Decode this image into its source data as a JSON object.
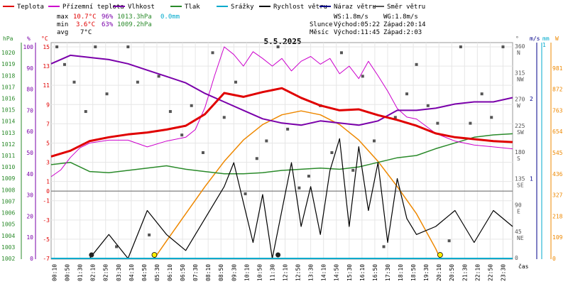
{
  "colors": {
    "temp": "#e00000",
    "apparent": "#cc00cc",
    "humidity": "#7a00aa",
    "pressure": "#2a8a2a",
    "precip": "#00aacc",
    "wind": "#000000",
    "gust": "#000088",
    "direction": "#555555",
    "sun": "#ee8800",
    "moon": "#222222",
    "sunmark": "#ffee00"
  },
  "legend": [
    {
      "key": "temp",
      "label": "Teplota"
    },
    {
      "key": "apparent",
      "label": "Přízemní teplota"
    },
    {
      "key": "humidity",
      "label": "Vlhkost"
    },
    {
      "key": "pressure",
      "label": "Tlak"
    },
    {
      "key": "precip",
      "label": "Srážky"
    },
    {
      "key": "wind",
      "label": "Rychlost větru"
    },
    {
      "key": "gust",
      "label": "Náraz větru"
    },
    {
      "key": "direction",
      "label": "Směr větru"
    }
  ],
  "stats": {
    "max": {
      "label": "max",
      "temp": "10.7°C",
      "hum": "96%",
      "press": "1013.3hPa",
      "precip": "0.0mm"
    },
    "min": {
      "label": "min",
      "temp": "3.6°C",
      "hum": "63%",
      "press": "1009.2hPa"
    },
    "avg": {
      "label": "avg",
      "temp": "7°C"
    }
  },
  "info": {
    "ws": "WS:1.8m/s",
    "wg": "WG:1.8m/s",
    "sun_label": "Slunce",
    "sunrise": "Východ:05:22",
    "sunset": "Západ:20:14",
    "moon_label": "Měsíc",
    "moonrise": "Východ:11:45",
    "moonset": "Západ:2:03"
  },
  "title": "5.5.2025",
  "axes": {
    "hpa_title": "hPa",
    "pct_title": "%",
    "degc_title": "°C",
    "dir_title": "°",
    "ms_title": "m/s",
    "mm_title": "mm",
    "w_title": "W",
    "time_title": "čas",
    "hpa_ticks": [
      "1020",
      "1019",
      "1018",
      "1017",
      "1016",
      "1015",
      "1014",
      "1013",
      "1012",
      "1011",
      "1010",
      "1009",
      "1008",
      "1007",
      "1006",
      "1005",
      "1004",
      "1003",
      "1002"
    ],
    "pct_ticks": [
      "100",
      "90",
      "80",
      "70",
      "60",
      "50",
      "40",
      "30",
      "20",
      "10",
      "0"
    ],
    "degc_ticks": [
      "15",
      "13",
      "11",
      "9",
      "7",
      "5",
      "3",
      "1",
      "0",
      "-1",
      "-3",
      "-5",
      "-7"
    ],
    "dir_ticks": [
      {
        "deg": "360",
        "abbr": "N"
      },
      {
        "deg": "315",
        "abbr": "NW"
      },
      {
        "deg": "270",
        "abbr": "W"
      },
      {
        "deg": "225",
        "abbr": "SW"
      },
      {
        "deg": "180",
        "abbr": "S"
      },
      {
        "deg": "135",
        "abbr": "SE"
      },
      {
        "deg": "90",
        "abbr": "E"
      },
      {
        "deg": "45",
        "abbr": "NE"
      },
      {
        "deg": "0",
        "abbr": ""
      }
    ],
    "ms_ticks": [
      "1",
      "2"
    ],
    "mm_ticks": [
      "1"
    ],
    "w_ticks": [
      "981",
      "872",
      "763",
      "654",
      "545",
      "436",
      "327",
      "218",
      "109",
      "0"
    ],
    "time_ticks": [
      "00:10",
      "00:50",
      "01:30",
      "02:10",
      "02:50",
      "03:30",
      "04:10",
      "04:50",
      "05:30",
      "06:10",
      "06:50",
      "07:30",
      "08:10",
      "08:50",
      "09:30",
      "10:10",
      "10:50",
      "11:30",
      "12:10",
      "12:50",
      "13:30",
      "14:10",
      "14:50",
      "15:30",
      "16:10",
      "16:50",
      "17:30",
      "18:10",
      "18:50",
      "19:30",
      "20:10",
      "20:50",
      "21:30",
      "22:10",
      "22:50",
      "23:30"
    ]
  },
  "chart_data": {
    "type": "line",
    "title": "5.5.2025",
    "x_unit": "hours",
    "xlim": [
      0,
      24
    ],
    "series": [
      {
        "name": "Teplota",
        "axis": "degc",
        "ylim": [
          -7,
          15
        ],
        "x": [
          0,
          1,
          2,
          3,
          4,
          5,
          6,
          7,
          8,
          9,
          10,
          11,
          12,
          13,
          14,
          15,
          16,
          17,
          18,
          19,
          20,
          21,
          22,
          23,
          24
        ],
        "y": [
          3.6,
          4.2,
          5.2,
          5.6,
          5.9,
          6.1,
          6.4,
          6.8,
          8.0,
          10.2,
          9.8,
          10.3,
          10.7,
          9.7,
          8.9,
          8.4,
          8.5,
          7.9,
          7.4,
          6.8,
          6.0,
          5.6,
          5.4,
          5.2,
          5.1
        ]
      },
      {
        "name": "Přízemní teplota",
        "axis": "degc",
        "ylim": [
          -7,
          15
        ],
        "x": [
          0,
          0.5,
          1,
          1.5,
          2,
          3,
          4,
          5,
          6,
          7,
          7.5,
          8,
          8.5,
          9,
          9.5,
          10,
          10.5,
          11,
          11.5,
          12,
          12.5,
          13,
          13.5,
          14,
          14.5,
          15,
          15.5,
          16,
          16.5,
          17,
          17.5,
          18,
          18.5,
          19,
          20,
          21,
          22,
          23,
          24
        ],
        "y": [
          1.5,
          2.2,
          3.5,
          4.5,
          5.0,
          5.3,
          5.3,
          4.6,
          5.2,
          5.6,
          6.4,
          8.7,
          12.0,
          15.0,
          14.2,
          13.0,
          14.5,
          13.8,
          13.0,
          13.8,
          12.5,
          13.5,
          14.0,
          13.2,
          13.8,
          12.2,
          13.0,
          11.7,
          13.5,
          12.0,
          10.4,
          8.6,
          7.7,
          7.5,
          6.0,
          5.2,
          4.8,
          4.6,
          4.4
        ]
      },
      {
        "name": "Vlhkost",
        "axis": "pct",
        "ylim": [
          0,
          100
        ],
        "x": [
          0,
          1,
          2,
          3,
          4,
          5,
          6,
          7,
          8,
          9,
          10,
          11,
          12,
          13,
          14,
          15,
          16,
          17,
          18,
          19,
          20,
          21,
          22,
          23,
          24
        ],
        "y": [
          92,
          96,
          95,
          94,
          92,
          89,
          86,
          83,
          78,
          74,
          70,
          66,
          64,
          63,
          65,
          64,
          63,
          65,
          70,
          70,
          71,
          73,
          74,
          74,
          76
        ]
      },
      {
        "name": "Tlak",
        "axis": "hpa",
        "ylim": [
          1002,
          1020.5
        ],
        "x": [
          0,
          1,
          2,
          3,
          4,
          5,
          6,
          7,
          8,
          9,
          10,
          11,
          12,
          13,
          14,
          15,
          16,
          17,
          18,
          19,
          20,
          21,
          22,
          23,
          24
        ],
        "y": [
          1010.2,
          1010.4,
          1009.6,
          1009.5,
          1009.7,
          1009.9,
          1010.1,
          1009.8,
          1009.6,
          1009.4,
          1009.4,
          1009.5,
          1009.7,
          1009.8,
          1009.9,
          1009.8,
          1010.0,
          1010.4,
          1010.8,
          1011.0,
          1011.6,
          1012.1,
          1012.6,
          1012.8,
          1012.9
        ]
      },
      {
        "name": "Rychlost větru",
        "axis": "ms",
        "ylim": [
          0,
          2.65
        ],
        "x": [
          0,
          1,
          2,
          3,
          4,
          5,
          6,
          7,
          8,
          9,
          9.5,
          10,
          10.5,
          11,
          11.5,
          12,
          12.5,
          13,
          13.5,
          14,
          14.5,
          15,
          15.5,
          16,
          16.5,
          17,
          17.5,
          18,
          18.5,
          19,
          20,
          21,
          22,
          23,
          24
        ],
        "y": [
          0,
          0,
          0,
          0.3,
          0,
          0.6,
          0.3,
          0.1,
          0.5,
          0.9,
          1.2,
          0.7,
          0.2,
          0.8,
          0,
          0.6,
          1.2,
          0.4,
          0.9,
          0.3,
          1.1,
          1.5,
          0.4,
          1.4,
          0.6,
          1.2,
          0.2,
          1.0,
          0.5,
          0.3,
          0.4,
          0.6,
          0.2,
          0.6,
          0.4
        ]
      },
      {
        "name": "Sluneční záření",
        "axis": "w",
        "ylim": [
          0,
          1090
        ],
        "x": [
          5.37,
          6,
          7,
          8,
          9,
          10,
          11,
          12,
          13,
          14,
          15,
          16,
          17,
          18,
          19,
          20,
          20.23
        ],
        "y": [
          0,
          90,
          230,
          370,
          500,
          610,
          690,
          740,
          760,
          740,
          690,
          610,
          500,
          370,
          230,
          50,
          0
        ]
      },
      {
        "name": "Směr větru",
        "type": "scatter",
        "axis": "dir",
        "ylim": [
          0,
          360
        ],
        "x": [
          0.3,
          0.7,
          1.2,
          1.8,
          2.3,
          2.9,
          3.4,
          4.0,
          4.5,
          5.1,
          5.6,
          6.2,
          6.8,
          7.3,
          7.9,
          8.4,
          9.0,
          9.6,
          10.1,
          10.7,
          11.2,
          11.8,
          12.3,
          12.9,
          13.4,
          14.0,
          14.6,
          15.1,
          15.7,
          16.2,
          16.8,
          17.3,
          17.9,
          18.5,
          19.0,
          19.6,
          20.1,
          20.7,
          21.3,
          21.8,
          22.4,
          22.9,
          23.5
        ],
        "y": [
          360,
          330,
          300,
          250,
          360,
          280,
          20,
          360,
          300,
          40,
          310,
          250,
          210,
          260,
          180,
          350,
          240,
          300,
          110,
          170,
          200,
          360,
          220,
          120,
          140,
          260,
          180,
          350,
          150,
          310,
          200,
          20,
          240,
          280,
          330,
          260,
          230,
          30,
          360,
          230,
          280,
          240,
          360
        ]
      }
    ],
    "markers": [
      {
        "type": "moon",
        "x": 2.1
      },
      {
        "type": "sun",
        "x": 5.37
      },
      {
        "type": "moon",
        "x": 11.8
      },
      {
        "type": "sun",
        "x": 20.23
      }
    ]
  }
}
